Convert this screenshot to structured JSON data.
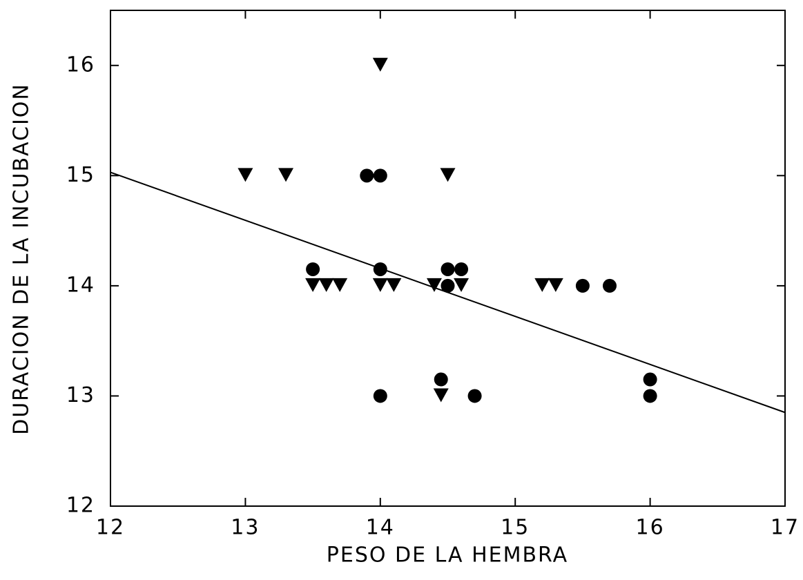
{
  "chart_data": {
    "type": "scatter",
    "x_label": "PESO DE LA HEMBRA",
    "y_label": "DURACION DE LA INCUBACION",
    "xlim": [
      12,
      17
    ],
    "ylim": [
      12,
      16.5
    ],
    "xticks": [
      12,
      13,
      14,
      15,
      16,
      17
    ],
    "yticks": [
      12,
      13,
      14,
      15,
      16
    ],
    "series": [
      {
        "marker": "triangle",
        "color": "#000000",
        "x": [
          13,
          13.3,
          14,
          14.5,
          13.5,
          13.6,
          13.7,
          14,
          14.1,
          14.4,
          14.6,
          15.2,
          15.3,
          14.45
        ],
        "values": [
          15,
          15,
          16,
          15,
          14,
          14,
          14,
          14,
          14,
          14,
          14,
          14,
          14,
          13
        ]
      },
      {
        "marker": "circle",
        "color": "#000000",
        "x": [
          13.9,
          14,
          13.5,
          14,
          14.5,
          14.6,
          14.5,
          15.5,
          15.7,
          14.45,
          14,
          14.7,
          16,
          16
        ],
        "values": [
          15,
          15,
          14.15,
          14.15,
          14.15,
          14.15,
          14,
          14,
          14,
          13.15,
          13,
          13,
          13.15,
          13
        ]
      }
    ],
    "fit": {
      "color": "#000000",
      "x": [
        12,
        17
      ],
      "values": [
        15.03,
        12.85
      ]
    }
  }
}
